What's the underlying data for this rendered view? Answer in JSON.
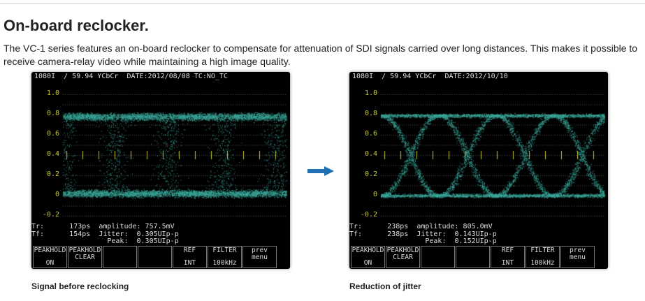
{
  "section": {
    "title": "On-board reclocker.",
    "description": "The VC-1 series features an on-board reclocker to compensate for attenuation of SDI signals carried over long distances. This makes it possible to receive camera-relay video while maintaining a high image quality."
  },
  "colors": {
    "trace": "#3aa89a",
    "scale": "#c8c832",
    "arrow": "#1f6fb2"
  },
  "screens": [
    {
      "header": "1080I  / 59.94 YCbCr  DATE:2012/08/08 TC:NO_TC",
      "y_ticks": [
        "1.0",
        "0.8",
        "0.6",
        "0.4",
        "0.2",
        "0",
        "-0.2"
      ],
      "meas": {
        "line1": "Tr:      173ps  amplitude: 757.5mV",
        "line2": "Tf:      154ps  Jitter:  0.305UIp-p",
        "line3": "                  Peak:  0.305UIp-p"
      },
      "buttons": [
        {
          "top": "PEAKHOLD",
          "bottom": "ON"
        },
        {
          "top": "PEAKHOLD\nCLEAR",
          "bottom": ""
        },
        {
          "top": "",
          "bottom": ""
        },
        {
          "top": "",
          "bottom": ""
        },
        {
          "top": "REF",
          "bottom": "INT"
        },
        {
          "top": "FILTER",
          "bottom": "100kHz"
        },
        {
          "top": "prev\nmenu",
          "bottom": ""
        }
      ],
      "caption": "Signal before reclocking",
      "jitter_uipp": 0.305
    },
    {
      "header": "1080I  / 59.94 YCbCr  DATE:2012/10/10",
      "y_ticks": [
        "1.0",
        "0.8",
        "0.6",
        "0.4",
        "0.2",
        "0",
        "-0.2"
      ],
      "meas": {
        "line1": "Tr:      238ps  amplitude: 805.0mV",
        "line2": "Tf:      238ps  Jitter:  0.143UIp-p",
        "line3": "                  Peak:  0.152UIp-p"
      },
      "buttons": [
        {
          "top": "PEAKHOLD",
          "bottom": "ON"
        },
        {
          "top": "PEAKHOLD\nCLEAR",
          "bottom": ""
        },
        {
          "top": "",
          "bottom": ""
        },
        {
          "top": "",
          "bottom": ""
        },
        {
          "top": "REF",
          "bottom": "INT"
        },
        {
          "top": "FILTER",
          "bottom": "100kHz"
        },
        {
          "top": "prev\nmenu",
          "bottom": ""
        }
      ],
      "caption": "Reduction of jitter",
      "jitter_uipp": 0.143
    }
  ]
}
